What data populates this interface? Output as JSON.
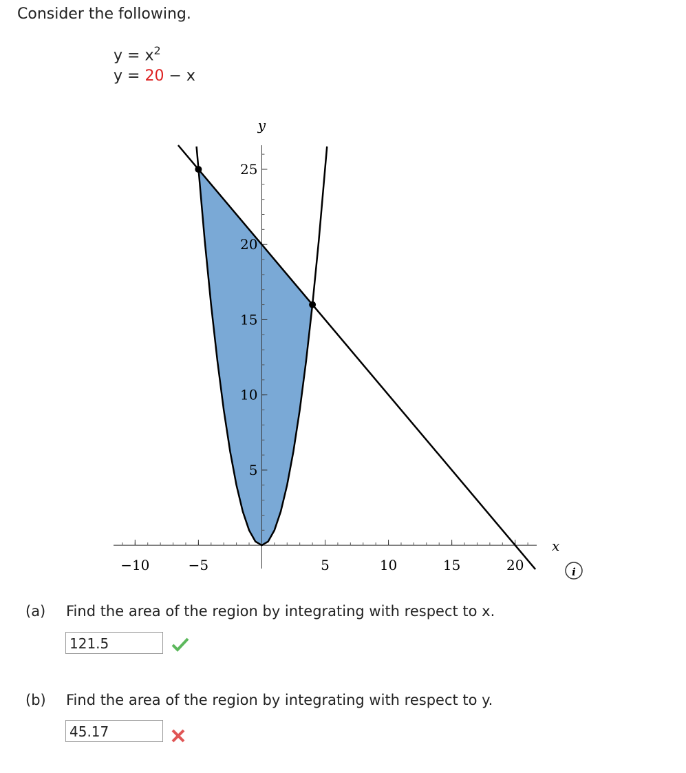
{
  "header": {
    "title": "Consider the following."
  },
  "equations": [
    {
      "lhs": "y = x",
      "sup": "2"
    },
    {
      "lhs": "y = ",
      "highlight": "20",
      "rest": " − x"
    }
  ],
  "graph": {
    "xlabel": "x",
    "ylabel": "y",
    "xlim": [
      -11.7,
      21.7
    ],
    "ylim": [
      -1,
      26.6
    ],
    "xticks": [
      {
        "value": -10,
        "label": "−10"
      },
      {
        "value": -5,
        "label": "−5"
      },
      5,
      10,
      15,
      20
    ],
    "yticks": [
      5,
      10,
      15,
      20,
      25
    ],
    "minor_tick_step": 1,
    "curves": [
      {
        "x": [
          -5.15,
          -4.5,
          -4,
          -3.5,
          -3,
          -2.5,
          -2,
          -1.5,
          -1,
          -0.5,
          0,
          0.5,
          1,
          1.5,
          2,
          2.5,
          3,
          3.5,
          4,
          4.5,
          5.15
        ],
        "y": [
          26.52,
          20.25,
          16,
          12.25,
          9,
          6.25,
          4,
          2.25,
          1,
          0.25,
          0,
          0.25,
          1,
          2.25,
          4,
          6.25,
          9,
          12.25,
          16,
          20.25,
          26.52
        ]
      },
      {
        "x": [
          -6.6,
          21.6
        ],
        "y": [
          26.6,
          -1.6
        ]
      }
    ],
    "region": {
      "color": "#7aa9d6",
      "x": [
        -5,
        4,
        3.5,
        3,
        2.5,
        2,
        1.5,
        1,
        0.5,
        0,
        -0.5,
        -1,
        -1.5,
        -2,
        -2.5,
        -3,
        -3.5,
        -4,
        -4.5,
        -5
      ],
      "y": [
        25,
        16,
        12.25,
        9,
        6.25,
        4,
        2.25,
        1,
        0.25,
        0,
        0.25,
        1,
        2.25,
        4,
        6.25,
        9,
        12.25,
        16,
        20.25,
        25
      ]
    },
    "points": [
      {
        "x": -5,
        "y": 25
      },
      {
        "x": 4,
        "y": 16
      }
    ]
  },
  "questions": [
    {
      "label": "(a)",
      "text": "Find the area of the region by integrating with respect to x.",
      "answer": "121.5",
      "status": "correct"
    },
    {
      "label": "(b)",
      "text": "Find the area of the region by integrating with respect to y.",
      "answer": "45.17",
      "status": "incorrect"
    }
  ]
}
